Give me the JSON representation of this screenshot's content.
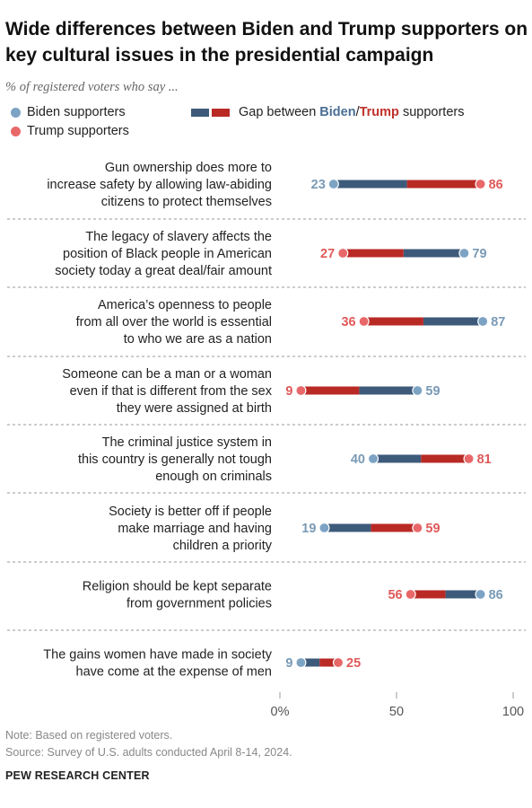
{
  "title": "Wide differences between Biden and Trump supporters on key cultural issues in the presidential campaign",
  "subtitle": "% of registered voters who say ...",
  "legend": {
    "biden": "Biden supporters",
    "trump": "Trump supporters",
    "gap_prefix": "Gap between ",
    "gap_biden": "Biden",
    "gap_slash": "/",
    "gap_trump": "Trump",
    "gap_suffix": " supporters"
  },
  "colors": {
    "biden_dot": "#7da3c4",
    "trump_dot": "#e8686a",
    "biden_bar": "#3d5a7a",
    "trump_bar": "#b92a25",
    "biden_label": "#7a9ab6",
    "trump_label": "#e05a5a"
  },
  "chart_data": {
    "type": "dot-range",
    "xlim": [
      0,
      100
    ],
    "xticks": [
      "0%",
      "50",
      "100"
    ],
    "series": [
      {
        "name": "Biden supporters"
      },
      {
        "name": "Trump supporters"
      }
    ],
    "rows": [
      {
        "label": [
          "Gun ownership does more to",
          "increase safety by allowing law-abiding",
          "citizens to protect themselves"
        ],
        "biden": 23,
        "trump": 86
      },
      {
        "label": [
          "The legacy of slavery affects the",
          "position of Black people in American",
          "society today a great deal/fair amount"
        ],
        "biden": 79,
        "trump": 27
      },
      {
        "label": [
          "America’s openness to people",
          "from all over the world is essential",
          "to who we are as a nation"
        ],
        "biden": 87,
        "trump": 36
      },
      {
        "label": [
          "Someone can be a man or a woman",
          "even if that is different from the sex",
          "they were assigned at birth"
        ],
        "biden": 59,
        "trump": 9
      },
      {
        "label": [
          "The criminal justice system in",
          "this country is generally not tough",
          "enough on criminals"
        ],
        "biden": 40,
        "trump": 81
      },
      {
        "label": [
          "Society is better off if people",
          "make marriage and having",
          "children a priority"
        ],
        "biden": 19,
        "trump": 59
      },
      {
        "label": [
          "Religion should be kept separate",
          "from government policies"
        ],
        "biden": 86,
        "trump": 56
      },
      {
        "label": [
          "The gains women have made in society",
          "have come at the expense of men"
        ],
        "biden": 9,
        "trump": 25
      }
    ]
  },
  "notes": {
    "note": "Note: Based on registered voters.",
    "source": "Source: Survey of U.S. adults conducted April 8-14, 2024."
  },
  "footer": "PEW RESEARCH CENTER"
}
